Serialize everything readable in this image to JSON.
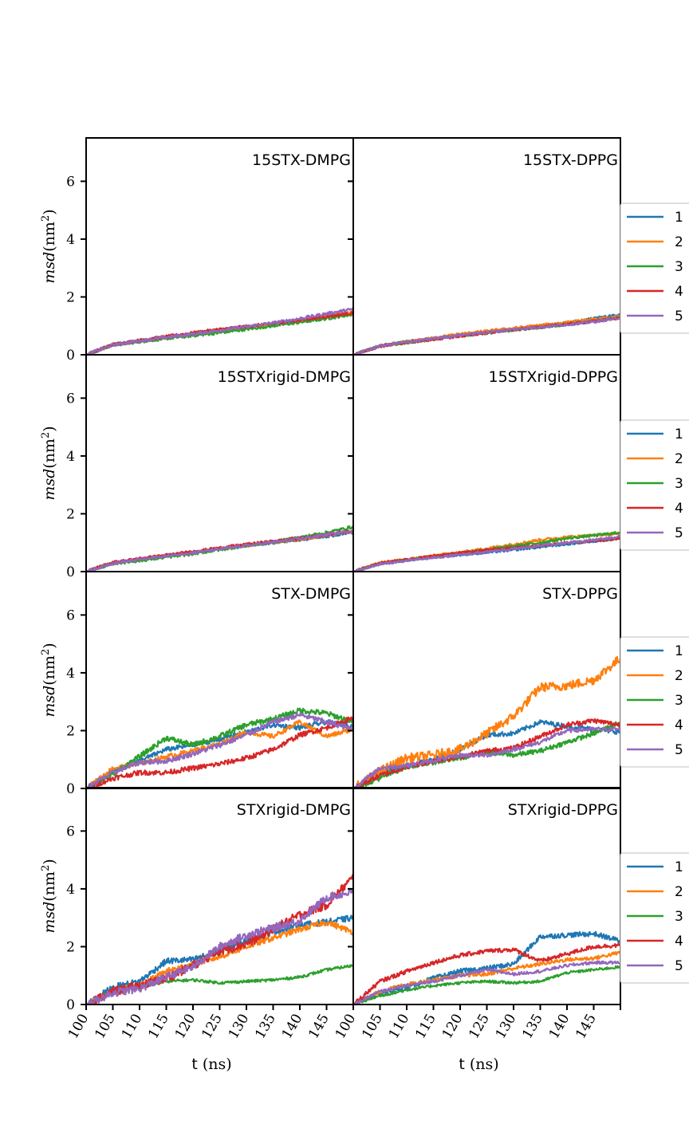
{
  "colors": {
    "1": "#1f77b4",
    "2": "#ff7f0e",
    "3": "#2ca02c",
    "4": "#d62728",
    "5": "#9467bd"
  },
  "ylabel": {
    "italic": "msd",
    "rest": "(nm",
    "sup": "2",
    "close": ")"
  },
  "xlabel": {
    "t": "t",
    "unit": "(ns)"
  },
  "chart_data": [
    {
      "type": "line",
      "title": "15STX-DMPG",
      "xlim": [
        100,
        150
      ],
      "ylim": [
        0,
        7.5
      ],
      "x": [
        100,
        105,
        110,
        115,
        120,
        125,
        130,
        135,
        140,
        145,
        150
      ],
      "series": [
        {
          "name": "1",
          "values": [
            0.0,
            0.35,
            0.48,
            0.6,
            0.72,
            0.85,
            0.95,
            1.05,
            1.18,
            1.3,
            1.45
          ]
        },
        {
          "name": "2",
          "values": [
            0.0,
            0.34,
            0.47,
            0.6,
            0.72,
            0.84,
            0.95,
            1.06,
            1.2,
            1.35,
            1.5
          ]
        },
        {
          "name": "3",
          "values": [
            0.0,
            0.33,
            0.45,
            0.56,
            0.66,
            0.76,
            0.88,
            1.0,
            1.12,
            1.25,
            1.4
          ]
        },
        {
          "name": "4",
          "values": [
            0.0,
            0.36,
            0.5,
            0.63,
            0.76,
            0.88,
            0.98,
            1.08,
            1.2,
            1.32,
            1.45
          ]
        },
        {
          "name": "5",
          "values": [
            0.0,
            0.34,
            0.48,
            0.6,
            0.72,
            0.85,
            0.97,
            1.1,
            1.25,
            1.42,
            1.58
          ]
        }
      ]
    },
    {
      "type": "line",
      "title": "15STX-DPPG",
      "xlim": [
        100,
        150
      ],
      "ylim": [
        0,
        7.5
      ],
      "x": [
        100,
        105,
        110,
        115,
        120,
        125,
        130,
        135,
        140,
        145,
        150
      ],
      "series": [
        {
          "name": "1",
          "values": [
            0.0,
            0.32,
            0.45,
            0.56,
            0.68,
            0.78,
            0.88,
            0.98,
            1.1,
            1.25,
            1.38
          ]
        },
        {
          "name": "2",
          "values": [
            0.0,
            0.3,
            0.44,
            0.58,
            0.72,
            0.82,
            0.92,
            1.02,
            1.12,
            1.22,
            1.32
          ]
        },
        {
          "name": "3",
          "values": [
            0.0,
            0.3,
            0.42,
            0.54,
            0.65,
            0.75,
            0.85,
            0.95,
            1.05,
            1.15,
            1.3
          ]
        },
        {
          "name": "4",
          "values": [
            0.0,
            0.29,
            0.42,
            0.53,
            0.64,
            0.76,
            0.86,
            0.96,
            1.06,
            1.16,
            1.28
          ]
        },
        {
          "name": "5",
          "values": [
            0.0,
            0.3,
            0.43,
            0.56,
            0.68,
            0.78,
            0.88,
            0.96,
            1.04,
            1.14,
            1.28
          ]
        }
      ]
    },
    {
      "type": "line",
      "title": "15STXrigid-DMPG",
      "xlim": [
        100,
        150
      ],
      "ylim": [
        0,
        7.5
      ],
      "x": [
        100,
        105,
        110,
        115,
        120,
        125,
        130,
        135,
        140,
        145,
        150
      ],
      "series": [
        {
          "name": "1",
          "values": [
            0.0,
            0.3,
            0.42,
            0.55,
            0.65,
            0.78,
            0.9,
            1.0,
            1.1,
            1.22,
            1.35
          ]
        },
        {
          "name": "2",
          "values": [
            0.0,
            0.3,
            0.42,
            0.55,
            0.66,
            0.8,
            0.9,
            1.02,
            1.12,
            1.25,
            1.4
          ]
        },
        {
          "name": "3",
          "values": [
            0.0,
            0.28,
            0.38,
            0.5,
            0.62,
            0.76,
            0.9,
            1.02,
            1.18,
            1.35,
            1.55
          ]
        },
        {
          "name": "4",
          "values": [
            0.0,
            0.32,
            0.45,
            0.57,
            0.69,
            0.82,
            0.94,
            1.05,
            1.15,
            1.28,
            1.42
          ]
        },
        {
          "name": "5",
          "values": [
            0.0,
            0.29,
            0.42,
            0.54,
            0.66,
            0.78,
            0.9,
            1.02,
            1.14,
            1.28,
            1.42
          ]
        }
      ]
    },
    {
      "type": "line",
      "title": "15STXrigid-DPPG",
      "xlim": [
        100,
        150
      ],
      "ylim": [
        0,
        7.5
      ],
      "x": [
        100,
        105,
        110,
        115,
        120,
        125,
        130,
        135,
        140,
        145,
        150
      ],
      "series": [
        {
          "name": "1",
          "values": [
            0.0,
            0.28,
            0.4,
            0.5,
            0.58,
            0.66,
            0.75,
            0.85,
            0.95,
            1.05,
            1.15
          ]
        },
        {
          "name": "2",
          "values": [
            0.0,
            0.3,
            0.42,
            0.55,
            0.66,
            0.8,
            0.95,
            1.1,
            1.2,
            1.25,
            1.32
          ]
        },
        {
          "name": "3",
          "values": [
            0.0,
            0.28,
            0.4,
            0.52,
            0.65,
            0.76,
            0.88,
            1.0,
            1.15,
            1.25,
            1.35
          ]
        },
        {
          "name": "4",
          "values": [
            0.0,
            0.3,
            0.42,
            0.54,
            0.65,
            0.75,
            0.82,
            0.9,
            1.0,
            1.05,
            1.15
          ]
        },
        {
          "name": "5",
          "values": [
            0.0,
            0.26,
            0.38,
            0.48,
            0.58,
            0.68,
            0.78,
            0.9,
            1.0,
            1.1,
            1.2
          ]
        }
      ]
    },
    {
      "type": "line",
      "title": "STX-DMPG",
      "xlim": [
        100,
        150
      ],
      "ylim": [
        0,
        7.5
      ],
      "x": [
        100,
        105,
        110,
        115,
        120,
        125,
        130,
        135,
        140,
        145,
        150
      ],
      "series": [
        {
          "name": "1",
          "values": [
            0.0,
            0.6,
            0.95,
            1.35,
            1.5,
            1.7,
            1.95,
            2.2,
            2.1,
            2.3,
            2.15
          ]
        },
        {
          "name": "2",
          "values": [
            0.0,
            0.7,
            0.85,
            1.1,
            1.3,
            1.55,
            1.95,
            1.8,
            2.3,
            1.8,
            2.05
          ]
        },
        {
          "name": "3",
          "values": [
            0.0,
            0.5,
            1.1,
            1.75,
            1.5,
            1.8,
            2.2,
            2.4,
            2.7,
            2.6,
            2.3
          ]
        },
        {
          "name": "4",
          "values": [
            0.0,
            0.35,
            0.55,
            0.55,
            0.7,
            0.85,
            1.05,
            1.35,
            1.85,
            2.1,
            2.45
          ]
        },
        {
          "name": "5",
          "values": [
            0.0,
            0.55,
            0.9,
            0.95,
            1.2,
            1.5,
            1.85,
            2.3,
            2.55,
            2.3,
            2.05
          ]
        }
      ]
    },
    {
      "type": "line",
      "title": "STX-DPPG",
      "xlim": [
        100,
        150
      ],
      "ylim": [
        0,
        7.5
      ],
      "x": [
        100,
        105,
        110,
        115,
        120,
        125,
        130,
        135,
        140,
        145,
        150
      ],
      "series": [
        {
          "name": "1",
          "values": [
            0.0,
            0.55,
            0.8,
            1.0,
            1.35,
            1.85,
            1.9,
            2.3,
            2.15,
            2.05,
            1.95
          ]
        },
        {
          "name": "2",
          "values": [
            0.0,
            0.6,
            1.05,
            1.15,
            1.35,
            1.9,
            2.5,
            3.5,
            3.55,
            3.75,
            4.5
          ]
        },
        {
          "name": "3",
          "values": [
            0.0,
            0.35,
            0.75,
            0.9,
            1.05,
            1.25,
            1.15,
            1.3,
            1.6,
            1.9,
            2.3
          ]
        },
        {
          "name": "4",
          "values": [
            0.0,
            0.45,
            0.75,
            0.95,
            1.1,
            1.3,
            1.4,
            1.8,
            2.2,
            2.35,
            2.2
          ]
        },
        {
          "name": "5",
          "values": [
            0.0,
            0.7,
            0.8,
            0.95,
            1.15,
            1.15,
            1.35,
            1.6,
            2.0,
            2.05,
            2.05
          ]
        }
      ]
    },
    {
      "type": "line",
      "title": "STXrigid-DMPG",
      "xlim": [
        100,
        150
      ],
      "ylim": [
        0,
        7.5
      ],
      "x": [
        100,
        105,
        110,
        115,
        120,
        125,
        130,
        135,
        140,
        145,
        150
      ],
      "series": [
        {
          "name": "1",
          "values": [
            0.0,
            0.6,
            0.8,
            1.5,
            1.55,
            1.85,
            2.2,
            2.5,
            2.75,
            2.85,
            3.0
          ]
        },
        {
          "name": "2",
          "values": [
            0.0,
            0.45,
            0.65,
            1.15,
            1.4,
            1.65,
            2.0,
            2.3,
            2.6,
            2.85,
            2.5
          ]
        },
        {
          "name": "3",
          "values": [
            0.0,
            0.5,
            0.6,
            0.8,
            0.85,
            0.75,
            0.8,
            0.85,
            0.95,
            1.2,
            1.35
          ]
        },
        {
          "name": "4",
          "values": [
            0.0,
            0.45,
            0.65,
            0.9,
            1.35,
            1.85,
            2.1,
            2.6,
            3.1,
            3.45,
            4.4
          ]
        },
        {
          "name": "5",
          "values": [
            0.0,
            0.4,
            0.55,
            0.95,
            1.3,
            2.0,
            2.4,
            2.65,
            2.9,
            3.7,
            3.9
          ]
        }
      ]
    },
    {
      "type": "line",
      "title": "STXrigid-DPPG",
      "xlim": [
        100,
        150
      ],
      "ylim": [
        0,
        7.5
      ],
      "x": [
        100,
        105,
        110,
        115,
        120,
        125,
        130,
        135,
        140,
        145,
        150
      ],
      "series": [
        {
          "name": "1",
          "values": [
            0.0,
            0.4,
            0.6,
            0.9,
            1.15,
            1.25,
            1.4,
            2.35,
            2.4,
            2.45,
            2.2
          ]
        },
        {
          "name": "2",
          "values": [
            0.0,
            0.45,
            0.7,
            0.85,
            1.0,
            1.05,
            1.25,
            1.4,
            1.55,
            1.6,
            1.8
          ]
        },
        {
          "name": "3",
          "values": [
            0.0,
            0.3,
            0.5,
            0.65,
            0.75,
            0.8,
            0.75,
            0.8,
            1.1,
            1.2,
            1.3
          ]
        },
        {
          "name": "4",
          "values": [
            0.0,
            0.8,
            1.15,
            1.45,
            1.7,
            1.85,
            1.9,
            1.5,
            1.75,
            2.0,
            2.05
          ]
        },
        {
          "name": "5",
          "values": [
            0.0,
            0.45,
            0.65,
            0.8,
            1.0,
            1.2,
            1.05,
            1.15,
            1.35,
            1.45,
            1.45
          ]
        }
      ]
    }
  ]
}
